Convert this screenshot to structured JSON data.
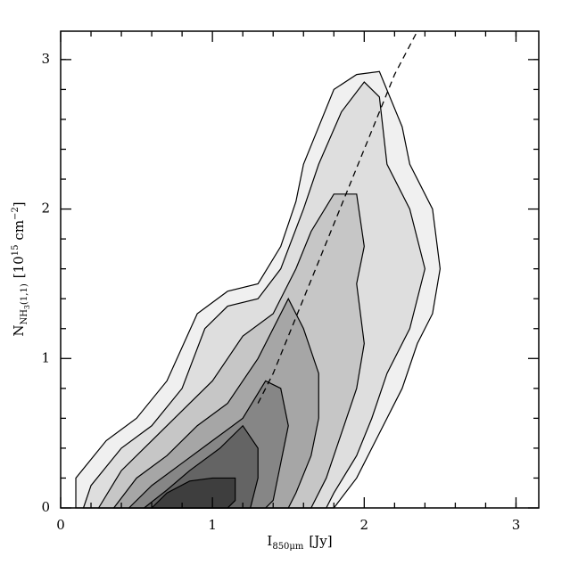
{
  "chart_data": {
    "type": "contour",
    "x_label": [
      "I",
      "850μm",
      "[Jy]"
    ],
    "y_label": [
      "N",
      "NH",
      "3",
      "(1,1)",
      "[10",
      "15",
      "cm",
      "−2",
      "]"
    ],
    "xlim": [
      0,
      3.15
    ],
    "ylim": [
      0,
      3.19
    ],
    "xticks": [
      0,
      1,
      2,
      3
    ],
    "yticks": [
      0,
      1,
      2,
      3
    ],
    "xminorticks": [
      0.2,
      0.4,
      0.6,
      0.8,
      1.2,
      1.4,
      1.6,
      1.8,
      2.2,
      2.4,
      2.6,
      2.8,
      3.0
    ],
    "yminorticks": [
      0.2,
      0.4,
      0.6,
      0.8,
      1.2,
      1.4,
      1.6,
      1.8,
      2.2,
      2.4,
      2.6,
      2.8,
      3.0
    ],
    "contours": [
      {
        "color": "#f0f0f0",
        "x": [
          0.1,
          0.1,
          0.3,
          0.5,
          0.7,
          0.9,
          1.1,
          1.3,
          1.45,
          1.55,
          1.6,
          1.7,
          1.8,
          1.95,
          2.1,
          2.25,
          2.3,
          2.45,
          2.5,
          2.45,
          2.35,
          2.25,
          2.1,
          1.95,
          1.8
        ],
        "y": [
          0,
          0.2,
          0.45,
          0.6,
          0.85,
          1.3,
          1.45,
          1.5,
          1.75,
          2.05,
          2.3,
          2.55,
          2.8,
          2.9,
          2.92,
          2.55,
          2.3,
          2.0,
          1.6,
          1.3,
          1.1,
          0.8,
          0.5,
          0.2,
          0
        ]
      },
      {
        "color": "#dedede",
        "x": [
          0.15,
          0.2,
          0.4,
          0.6,
          0.8,
          0.95,
          1.1,
          1.3,
          1.45,
          1.6,
          1.7,
          1.85,
          2.0,
          2.1,
          2.15,
          2.3,
          2.4,
          2.3,
          2.15,
          2.05,
          1.95,
          1.8,
          1.75
        ],
        "y": [
          0,
          0.15,
          0.4,
          0.55,
          0.8,
          1.2,
          1.35,
          1.4,
          1.6,
          2.0,
          2.3,
          2.65,
          2.85,
          2.75,
          2.3,
          2.0,
          1.6,
          1.2,
          0.9,
          0.6,
          0.35,
          0.1,
          0
        ]
      },
      {
        "color": "#c6c6c6",
        "x": [
          0.25,
          0.4,
          0.6,
          0.85,
          1.0,
          1.2,
          1.4,
          1.55,
          1.65,
          1.8,
          1.95,
          2.0,
          1.95,
          2.0,
          1.95,
          1.85,
          1.75,
          1.65
        ],
        "y": [
          0,
          0.25,
          0.45,
          0.7,
          0.85,
          1.15,
          1.3,
          1.6,
          1.85,
          2.1,
          2.1,
          1.75,
          1.5,
          1.1,
          0.8,
          0.5,
          0.2,
          0
        ]
      },
      {
        "color": "#a6a6a6",
        "x": [
          0.35,
          0.5,
          0.7,
          0.9,
          1.1,
          1.3,
          1.5,
          1.6,
          1.7,
          1.7,
          1.65,
          1.55,
          1.5
        ],
        "y": [
          0,
          0.2,
          0.35,
          0.55,
          0.7,
          1.0,
          1.4,
          1.2,
          0.9,
          0.6,
          0.35,
          0.1,
          0
        ]
      },
      {
        "color": "#868686",
        "x": [
          0.45,
          0.6,
          0.8,
          1.0,
          1.2,
          1.35,
          1.45,
          1.5,
          1.45,
          1.4,
          1.35
        ],
        "y": [
          0,
          0.15,
          0.3,
          0.45,
          0.6,
          0.85,
          0.8,
          0.55,
          0.3,
          0.05,
          0
        ]
      },
      {
        "color": "#646464",
        "x": [
          0.55,
          0.7,
          0.85,
          1.05,
          1.2,
          1.3,
          1.3,
          1.25
        ],
        "y": [
          0,
          0.12,
          0.25,
          0.4,
          0.55,
          0.4,
          0.2,
          0
        ]
      },
      {
        "color": "#3e3e3e",
        "x": [
          0.6,
          0.7,
          0.85,
          1.0,
          1.15,
          1.15,
          1.1
        ],
        "y": [
          0,
          0.1,
          0.18,
          0.2,
          0.2,
          0.05,
          0
        ]
      }
    ],
    "fit": {
      "x": [
        1.3,
        1.4,
        1.6,
        1.8,
        2.0,
        2.2,
        2.35
      ],
      "y": [
        0.7,
        0.9,
        1.4,
        1.9,
        2.4,
        2.9,
        3.19
      ]
    }
  }
}
